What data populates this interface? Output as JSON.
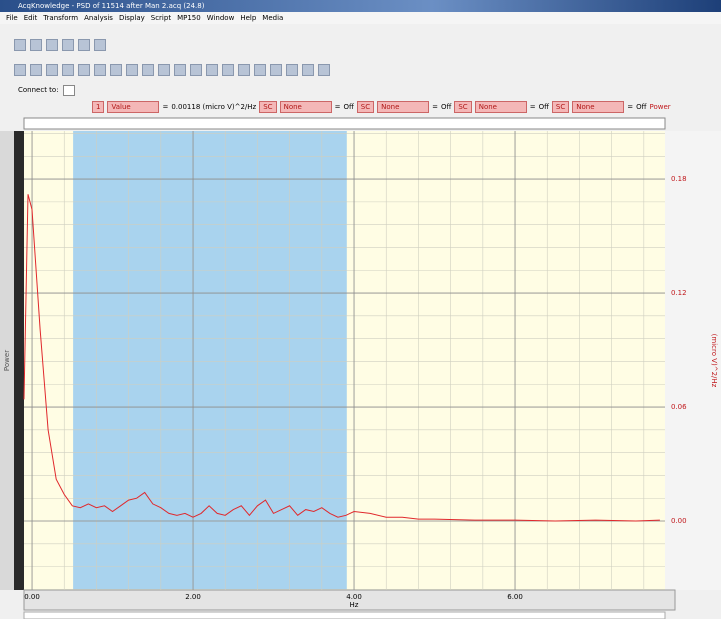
{
  "window": {
    "title": "AcqKnowledge - PSD of 11514 after Man 2.acq (24.8)"
  },
  "menu": [
    "File",
    "Edit",
    "Transform",
    "Analysis",
    "Display",
    "Script",
    "MP150",
    "Window",
    "Help",
    "Media"
  ],
  "connect_label": "Connect to:",
  "measurements": {
    "eq": "=",
    "power_button": "Power",
    "items": [
      {
        "channel": "1",
        "function": "Value",
        "result": "0.00118 (micro V)^2/Hz"
      },
      {
        "channel": "SC",
        "function": "None",
        "result": "Off"
      },
      {
        "channel": "SC",
        "function": "None",
        "result": "Off"
      },
      {
        "channel": "SC",
        "function": "None",
        "result": "Off"
      },
      {
        "channel": "SC",
        "function": "None",
        "result": "Off"
      }
    ]
  },
  "chart_data": {
    "type": "line",
    "xlabel": "Hz",
    "ylabel": "Power",
    "y_units": "(micro V)^2/Hz",
    "x": [
      -0.1,
      -0.05,
      0,
      0.1,
      0.2,
      0.3,
      0.4,
      0.5,
      0.6,
      0.7,
      0.8,
      0.9,
      1.0,
      1.1,
      1.2,
      1.3,
      1.4,
      1.5,
      1.6,
      1.7,
      1.8,
      1.9,
      2.0,
      2.1,
      2.2,
      2.3,
      2.4,
      2.5,
      2.6,
      2.7,
      2.8,
      2.9,
      3.0,
      3.1,
      3.2,
      3.3,
      3.4,
      3.5,
      3.6,
      3.7,
      3.8,
      3.9,
      4.0,
      4.2,
      4.4,
      4.6,
      4.8,
      5.0,
      5.5,
      6.0,
      6.5,
      7.0,
      7.5,
      7.8
    ],
    "values": [
      0.064,
      0.172,
      0.164,
      0.101,
      0.048,
      0.022,
      0.014,
      0.008,
      0.007,
      0.009,
      0.007,
      0.008,
      0.005,
      0.008,
      0.011,
      0.012,
      0.015,
      0.009,
      0.007,
      0.004,
      0.003,
      0.004,
      0.002,
      0.004,
      0.008,
      0.004,
      0.003,
      0.006,
      0.008,
      0.003,
      0.008,
      0.011,
      0.004,
      0.006,
      0.008,
      0.003,
      0.006,
      0.005,
      0.007,
      0.004,
      0.002,
      0.003,
      0.005,
      0.004,
      0.002,
      0.002,
      0.001,
      0.001,
      0.0005,
      0.0005,
      0,
      0.0005,
      0,
      0.0005
    ],
    "color": "#e0282c",
    "selection": [
      0.51,
      3.91
    ],
    "xlim": [
      -0.1,
      7.863
    ],
    "ylim": [
      -0.0363,
      0.2053
    ],
    "xticks": [
      {
        "value": 0,
        "label": "0.00"
      },
      {
        "value": 2,
        "label": "2.00"
      },
      {
        "value": 4,
        "label": "4.00"
      },
      {
        "value": 6,
        "label": "6.00"
      }
    ],
    "yticks": [
      {
        "value": 0,
        "label": "0.00"
      },
      {
        "value": 0.06,
        "label": "0.06"
      },
      {
        "value": 0.12,
        "label": "0.12"
      },
      {
        "value": 0.18,
        "label": "0.18"
      }
    ],
    "grid": true
  }
}
